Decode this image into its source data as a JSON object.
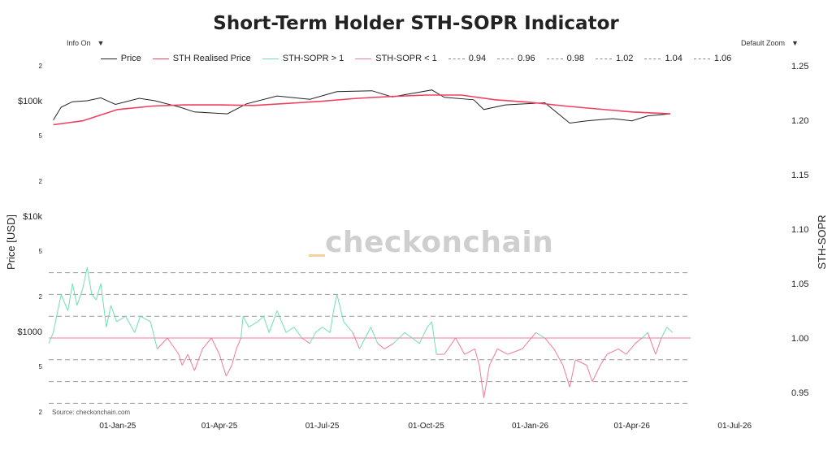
{
  "title": "Short-Term Holder STH-SOPR Indicator",
  "controls": {
    "info": "Info On",
    "zoom": "Default Zoom",
    "arrow": "▼"
  },
  "legend": [
    {
      "label": "Price",
      "color": "#222222",
      "style": "solid"
    },
    {
      "label": "STH Realised Price",
      "color": "#f0405f",
      "style": "solid"
    },
    {
      "label": "STH-SOPR > 1",
      "color": "#6ee0b4",
      "style": "solid"
    },
    {
      "label": "STH-SOPR < 1",
      "color": "#f07a9a",
      "style": "solid"
    },
    {
      "label": "0.94",
      "color": "#888888",
      "style": "dash"
    },
    {
      "label": "0.96",
      "color": "#888888",
      "style": "dash"
    },
    {
      "label": "0.98",
      "color": "#888888",
      "style": "dash"
    },
    {
      "label": "1.02",
      "color": "#888888",
      "style": "dash"
    },
    {
      "label": "1.04",
      "color": "#888888",
      "style": "dash"
    },
    {
      "label": "1.06",
      "color": "#888888",
      "style": "dash"
    }
  ],
  "watermark": "checkonchain",
  "source": "Source: checkonchain.com",
  "chart_data": {
    "type": "line",
    "title": "Short-Term Holder STH-SOPR Indicator",
    "ylabel_left": "Price [USD]",
    "ylabel_right": "STH-SOPR",
    "y_left_scale": "log",
    "y_left_ticks": [
      "2",
      "$100k",
      "5",
      "2",
      "$10k",
      "5",
      "2",
      "$1000",
      "5",
      "2"
    ],
    "y_right_range": [
      0.93,
      1.25
    ],
    "y_right_ticks": [
      "1.25",
      "1.20",
      "1.15",
      "1.10",
      "1.05",
      "1.00",
      "0.95"
    ],
    "x_ticks": [
      "01-Jan-25",
      "01-Apr-25",
      "01-Jul-25",
      "01-Oct-25",
      "01-Jan-26",
      "01-Apr-26",
      "01-Jul-26"
    ],
    "x_range": [
      "2024-11-01",
      "2026-07-31"
    ],
    "sopr_bands": [
      0.94,
      0.96,
      0.98,
      1.02,
      1.04,
      1.06
    ],
    "price": [
      [
        "2024-11-05",
        68000
      ],
      [
        "2024-11-12",
        88000
      ],
      [
        "2024-11-22",
        98000
      ],
      [
        "2024-12-05",
        100000
      ],
      [
        "2024-12-17",
        106000
      ],
      [
        "2024-12-30",
        93000
      ],
      [
        "2025-01-20",
        105000
      ],
      [
        "2025-02-03",
        100000
      ],
      [
        "2025-02-25",
        88000
      ],
      [
        "2025-03-10",
        80000
      ],
      [
        "2025-04-08",
        77000
      ],
      [
        "2025-04-25",
        94000
      ],
      [
        "2025-05-22",
        110000
      ],
      [
        "2025-06-20",
        103000
      ],
      [
        "2025-07-14",
        120000
      ],
      [
        "2025-08-14",
        122000
      ],
      [
        "2025-09-01",
        108000
      ],
      [
        "2025-10-06",
        124000
      ],
      [
        "2025-10-17",
        107000
      ],
      [
        "2025-11-12",
        102000
      ],
      [
        "2025-11-21",
        84000
      ],
      [
        "2025-12-10",
        92000
      ],
      [
        "2026-01-14",
        96000
      ],
      [
        "2026-02-05",
        64000
      ],
      [
        "2026-02-20",
        67000
      ],
      [
        "2026-03-15",
        70000
      ],
      [
        "2026-04-01",
        67000
      ],
      [
        "2026-04-15",
        74000
      ],
      [
        "2026-05-05",
        77000
      ]
    ],
    "sth_realised_price": [
      [
        "2024-11-05",
        62000
      ],
      [
        "2024-12-01",
        67000
      ],
      [
        "2025-01-01",
        84000
      ],
      [
        "2025-02-01",
        90000
      ],
      [
        "2025-03-01",
        92000
      ],
      [
        "2025-04-01",
        92000
      ],
      [
        "2025-05-01",
        91000
      ],
      [
        "2025-06-01",
        95000
      ],
      [
        "2025-07-01",
        99000
      ],
      [
        "2025-08-01",
        105000
      ],
      [
        "2025-09-01",
        109000
      ],
      [
        "2025-10-01",
        112000
      ],
      [
        "2025-11-01",
        112000
      ],
      [
        "2025-12-01",
        102000
      ],
      [
        "2026-01-01",
        97000
      ],
      [
        "2026-02-01",
        90000
      ],
      [
        "2026-03-01",
        85000
      ],
      [
        "2026-04-01",
        80000
      ],
      [
        "2026-05-05",
        77000
      ]
    ],
    "sth_sopr": [
      [
        "2024-11-01",
        0.995
      ],
      [
        "2024-11-05",
        1.005
      ],
      [
        "2024-11-08",
        1.02
      ],
      [
        "2024-11-12",
        1.04
      ],
      [
        "2024-11-18",
        1.025
      ],
      [
        "2024-11-22",
        1.05
      ],
      [
        "2024-11-26",
        1.03
      ],
      [
        "2024-12-01",
        1.045
      ],
      [
        "2024-12-05",
        1.065
      ],
      [
        "2024-12-09",
        1.04
      ],
      [
        "2024-12-13",
        1.035
      ],
      [
        "2024-12-17",
        1.05
      ],
      [
        "2024-12-22",
        1.01
      ],
      [
        "2024-12-26",
        1.03
      ],
      [
        "2024-12-31",
        1.015
      ],
      [
        "2025-01-08",
        1.02
      ],
      [
        "2025-01-16",
        1.005
      ],
      [
        "2025-01-21",
        1.02
      ],
      [
        "2025-01-30",
        1.015
      ],
      [
        "2025-02-05",
        0.99
      ],
      [
        "2025-02-14",
        1.0
      ],
      [
        "2025-02-24",
        0.985
      ],
      [
        "2025-02-27",
        0.975
      ],
      [
        "2025-03-04",
        0.985
      ],
      [
        "2025-03-10",
        0.97
      ],
      [
        "2025-03-17",
        0.99
      ],
      [
        "2025-03-25",
        1.0
      ],
      [
        "2025-04-01",
        0.985
      ],
      [
        "2025-04-07",
        0.965
      ],
      [
        "2025-04-12",
        0.975
      ],
      [
        "2025-04-16",
        0.99
      ],
      [
        "2025-04-20",
        1.0
      ],
      [
        "2025-04-22",
        1.02
      ],
      [
        "2025-04-27",
        1.01
      ],
      [
        "2025-05-05",
        1.015
      ],
      [
        "2025-05-10",
        1.02
      ],
      [
        "2025-05-15",
        1.005
      ],
      [
        "2025-05-22",
        1.025
      ],
      [
        "2025-05-30",
        1.005
      ],
      [
        "2025-06-06",
        1.01
      ],
      [
        "2025-06-13",
        1.0
      ],
      [
        "2025-06-20",
        0.995
      ],
      [
        "2025-06-25",
        1.005
      ],
      [
        "2025-07-01",
        1.01
      ],
      [
        "2025-07-08",
        1.005
      ],
      [
        "2025-07-11",
        1.025
      ],
      [
        "2025-07-14",
        1.04
      ],
      [
        "2025-07-20",
        1.015
      ],
      [
        "2025-07-28",
        1.005
      ],
      [
        "2025-08-03",
        0.99
      ],
      [
        "2025-08-13",
        1.01
      ],
      [
        "2025-08-19",
        0.995
      ],
      [
        "2025-08-25",
        0.99
      ],
      [
        "2025-09-02",
        0.995
      ],
      [
        "2025-09-12",
        1.005
      ],
      [
        "2025-09-25",
        0.995
      ],
      [
        "2025-10-02",
        1.01
      ],
      [
        "2025-10-06",
        1.015
      ],
      [
        "2025-10-10",
        0.985
      ],
      [
        "2025-10-17",
        0.985
      ],
      [
        "2025-10-27",
        1.0
      ],
      [
        "2025-11-04",
        0.985
      ],
      [
        "2025-11-13",
        0.99
      ],
      [
        "2025-11-17",
        0.975
      ],
      [
        "2025-11-21",
        0.945
      ],
      [
        "2025-11-26",
        0.975
      ],
      [
        "2025-12-03",
        0.99
      ],
      [
        "2025-12-12",
        0.985
      ],
      [
        "2025-12-25",
        0.99
      ],
      [
        "2026-01-06",
        1.005
      ],
      [
        "2026-01-14",
        1.0
      ],
      [
        "2026-01-22",
        0.99
      ],
      [
        "2026-01-30",
        0.975
      ],
      [
        "2026-02-05",
        0.955
      ],
      [
        "2026-02-10",
        0.98
      ],
      [
        "2026-02-20",
        0.975
      ],
      [
        "2026-02-25",
        0.96
      ],
      [
        "2026-03-04",
        0.975
      ],
      [
        "2026-03-10",
        0.985
      ],
      [
        "2026-03-20",
        0.99
      ],
      [
        "2026-03-27",
        0.985
      ],
      [
        "2026-04-04",
        0.995
      ],
      [
        "2026-04-10",
        1.0
      ],
      [
        "2026-04-15",
        1.005
      ],
      [
        "2026-04-22",
        0.985
      ],
      [
        "2026-04-27",
        1.0
      ],
      [
        "2026-05-02",
        1.01
      ],
      [
        "2026-05-07",
        1.005
      ]
    ]
  }
}
